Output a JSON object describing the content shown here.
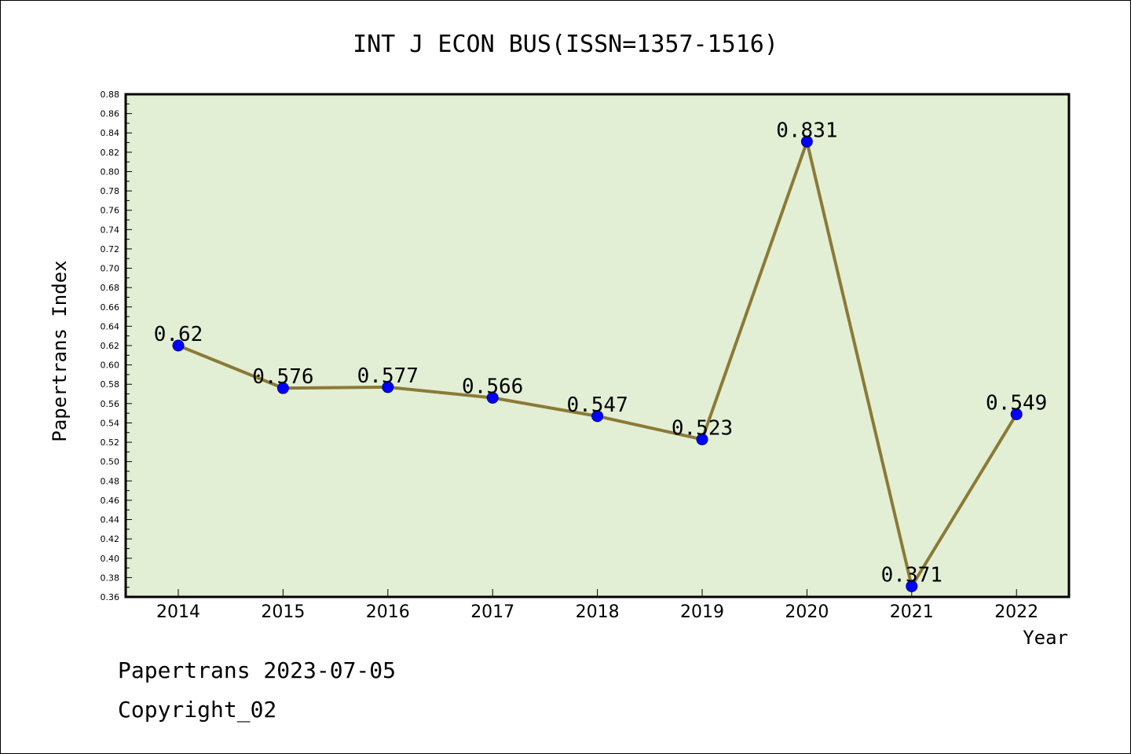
{
  "footer": {
    "line1": "Papertrans 2023-07-05",
    "line2": "Copyright_02"
  },
  "colors": {
    "plot_background": "#e2efd5",
    "line": "#8b7a36",
    "marker": "#0000ff"
  },
  "chart_data": {
    "type": "line",
    "title": "INT J ECON BUS(ISSN=1357-1516)",
    "xlabel": "Year",
    "ylabel": "Papertrans Index",
    "categories": [
      "2014",
      "2015",
      "2016",
      "2017",
      "2018",
      "2019",
      "2020",
      "2021",
      "2022"
    ],
    "series": [
      {
        "values": [
          0.62,
          0.576,
          0.577,
          0.566,
          0.547,
          0.523,
          0.831,
          0.371,
          0.549
        ],
        "labels": [
          "0.62",
          "0.576",
          "0.577",
          "0.566",
          "0.547",
          "0.523",
          "0.831",
          "0.371",
          "0.549"
        ]
      }
    ],
    "ylim": [
      0.36,
      0.88
    ],
    "yticks": [
      "0.36",
      "0.38",
      "0.40",
      "0.42",
      "0.44",
      "0.46",
      "0.48",
      "0.50",
      "0.52",
      "0.54",
      "0.56",
      "0.58",
      "0.60",
      "0.62",
      "0.64",
      "0.66",
      "0.68",
      "0.70",
      "0.72",
      "0.74",
      "0.76",
      "0.78",
      "0.80",
      "0.82",
      "0.84",
      "0.86",
      "0.88"
    ],
    "grid": false,
    "legend": "none"
  }
}
